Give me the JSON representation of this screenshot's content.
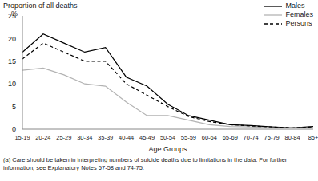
{
  "chart_data": {
    "type": "line",
    "y_label": "Proportion of all deaths",
    "y_unit_label": "%",
    "x_label": "Age Groups",
    "annotations": [
      "(a) Care should be taken in interpreting numbers of suicide deaths due to limitations in the data. For further information, see Explanatory Notes 57-58 and 74-75."
    ],
    "categories": [
      "15-19",
      "20-24",
      "25-29",
      "30-34",
      "35-39",
      "40-44",
      "45-49",
      "50-54",
      "55-59",
      "60-64",
      "65-69",
      "70-74",
      "75-79",
      "80-84",
      "85+"
    ],
    "series": [
      {
        "name": "Males",
        "color": "#000000",
        "line_style": "solid",
        "values": [
          17,
          21,
          19,
          17,
          18,
          11.5,
          9.5,
          5.5,
          3,
          2,
          1,
          0.8,
          0.5,
          0.3,
          0.6
        ]
      },
      {
        "name": "Females",
        "color": "#b3b3b3",
        "line_style": "solid",
        "values": [
          13,
          13.5,
          12,
          10,
          9.5,
          6,
          3,
          3,
          2,
          1,
          0.6,
          0.5,
          0.3,
          0.3,
          0.3
        ]
      },
      {
        "name": "Persons",
        "color": "#000000",
        "line_style": "dashed",
        "values": [
          15.5,
          19,
          17,
          15,
          15,
          10,
          7.5,
          5,
          2.8,
          1.7,
          1,
          0.7,
          0.5,
          0.3,
          0.5
        ]
      }
    ],
    "ylim": [
      0,
      25
    ],
    "yticks": [
      0,
      5,
      10,
      15,
      20,
      25
    ],
    "legend": "top-right",
    "grid": false
  }
}
